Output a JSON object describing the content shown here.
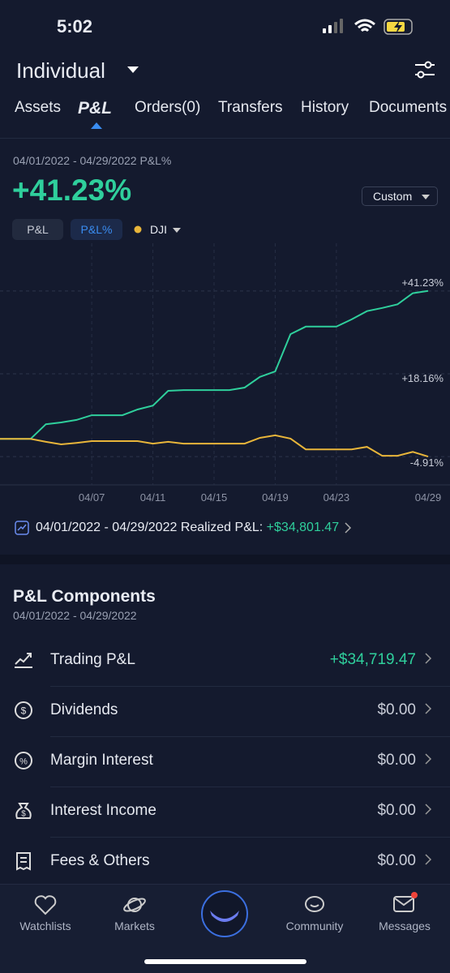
{
  "status_bar": {
    "time": "5:02"
  },
  "header": {
    "account": "Individual"
  },
  "tabs": [
    "Assets",
    "P&L",
    "Orders(0)",
    "Transfers",
    "History",
    "Documents"
  ],
  "summary": {
    "period_label": "04/01/2022 - 04/29/2022 P&L%",
    "value": "+41.23%",
    "range_button": "Custom",
    "toggles": [
      "P&L",
      "P&L%"
    ]
  },
  "chart_data": {
    "type": "line",
    "categories": [
      null,
      null,
      null,
      null,
      null,
      null,
      "04/07",
      null,
      null,
      null,
      "04/11",
      null,
      null,
      null,
      "04/15",
      null,
      null,
      null,
      "04/19",
      null,
      null,
      null,
      "04/23",
      null,
      null,
      null,
      null,
      null,
      "04/29"
    ],
    "series": [
      {
        "color": "#2fcf9c",
        "values": [
          0,
          0,
          0,
          4.1,
          4.6,
          5.3,
          6.6,
          6.6,
          6.6,
          8.2,
          9.3,
          13.4,
          13.6,
          13.6,
          13.6,
          13.6,
          14.3,
          17.3,
          18.8,
          29.2,
          31.3,
          31.3,
          31.3,
          33.3,
          35.6,
          36.5,
          37.5,
          40.6,
          41.23
        ]
      },
      {
        "name": "DJI",
        "color": "#e8b53a",
        "values": [
          0,
          0,
          0,
          -0.8,
          -1.5,
          -1.1,
          -0.6,
          -0.6,
          -0.6,
          -0.6,
          -1.3,
          -0.8,
          -1.3,
          -1.3,
          -1.3,
          -1.3,
          -1.3,
          0.3,
          1.0,
          0.1,
          -2.9,
          -2.9,
          -2.9,
          -2.9,
          -2.2,
          -4.7,
          -4.7,
          -3.6,
          -4.91
        ]
      }
    ],
    "ylim": [
      -12.8,
      50
    ],
    "yticks": [
      {
        "value": -4.91,
        "label": "-4.91%"
      },
      {
        "value": 18.16,
        "label": "+18.16%"
      },
      {
        "value": 41.23,
        "label": "+41.23%"
      }
    ],
    "grid": true
  },
  "realized": {
    "label": "04/01/2022 - 04/29/2022 Realized P&L:",
    "value": "+$34,801.47"
  },
  "components": {
    "title": "P&L Components",
    "period": "04/01/2022 - 04/29/2022",
    "items": [
      {
        "label": "Trading P&L",
        "value": "+$34,719.47"
      },
      {
        "label": "Dividends",
        "value": "$0.00"
      },
      {
        "label": "Margin Interest",
        "value": "$0.00"
      },
      {
        "label": "Interest Income",
        "value": "$0.00"
      },
      {
        "label": "Fees & Others",
        "value": "$0.00"
      }
    ]
  },
  "nav": [
    "Watchlists",
    "Markets",
    "Community",
    "Messages"
  ]
}
